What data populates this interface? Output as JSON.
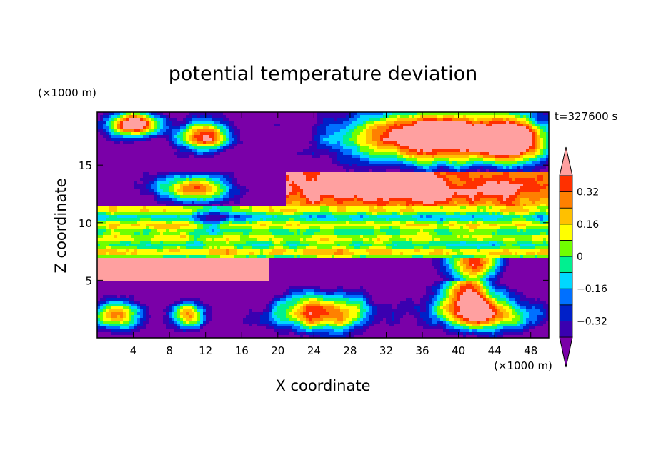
{
  "chart_data": {
    "type": "heatmap",
    "title": "potential temperature deviation",
    "xlabel": "X coordinate",
    "ylabel": "Z coordinate",
    "x_unit": "(×1000 m)",
    "y_unit": "(×1000 m)",
    "time_label": "t=327600 s",
    "xlim": [
      0,
      50
    ],
    "ylim": [
      0,
      19.6
    ],
    "x_ticks": [
      4,
      8,
      12,
      16,
      20,
      24,
      28,
      32,
      36,
      40,
      44,
      48
    ],
    "y_ticks": [
      5,
      10,
      15
    ],
    "colorbar": {
      "levels": [
        -0.48,
        -0.4,
        -0.32,
        -0.24,
        -0.16,
        -0.08,
        0,
        0.08,
        0.16,
        0.24,
        0.32,
        0.4,
        0.48
      ],
      "tick_labels": [
        "0.32",
        "0.16",
        "0",
        "−0.16",
        "−0.32"
      ],
      "tick_values": [
        0.32,
        0.16,
        0,
        -0.16,
        -0.32
      ],
      "colors": [
        "#7a00a8",
        "#3a00b0",
        "#0020c8",
        "#0070ff",
        "#00d8ff",
        "#00f090",
        "#70ff00",
        "#ffff00",
        "#ffc000",
        "#ff8000",
        "#ff3000",
        "#ffa0a0"
      ],
      "extend": "both"
    },
    "field_description_rows_z": [
      {
        "z": [
          17,
          19.6
        ],
        "x": [
          0,
          50
        ],
        "dominant": "mixed purple and pink with orange/red cells"
      },
      {
        "z": [
          12,
          14.5
        ],
        "x": [
          22,
          50
        ],
        "dominant": "red/orange band with pink above"
      },
      {
        "z": [
          7,
          12
        ],
        "x": [
          0,
          50
        ],
        "dominant": "green/yellow/cyan horizontal banding"
      },
      {
        "z": [
          0,
          7
        ],
        "x": [
          0,
          50
        ],
        "dominant": "purple with red/orange/pink pockets"
      }
    ]
  }
}
